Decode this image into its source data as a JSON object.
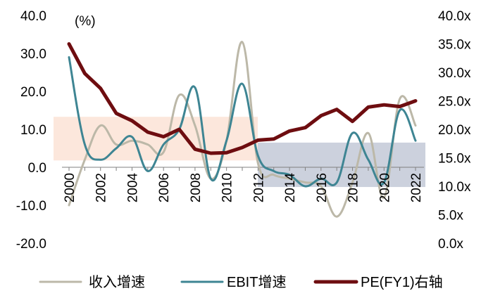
{
  "chart_data": {
    "type": "line",
    "unit_label": "(%)",
    "x": [
      "2000",
      "2001",
      "2002",
      "2003",
      "2004",
      "2005",
      "2006",
      "2007",
      "2008",
      "2009",
      "2010",
      "2011",
      "2012",
      "2013",
      "2014",
      "2015",
      "2016",
      "2017",
      "2018",
      "2019",
      "2020",
      "2021",
      "2022"
    ],
    "x_tick_labels": [
      "2000",
      "2002",
      "2004",
      "2006",
      "2008",
      "2010",
      "2012",
      "2014",
      "2016",
      "2018",
      "2020",
      "2022"
    ],
    "y_left": {
      "min": -20,
      "max": 40,
      "ticks": [
        "-20.0",
        "-10.0",
        "0.0",
        "10.0",
        "20.0",
        "30.0",
        "40.0"
      ]
    },
    "y_right": {
      "min": 0,
      "max": 40,
      "ticks": [
        "0.0x",
        "5.0x",
        "10.0x",
        "15.0x",
        "20.0x",
        "25.0x",
        "30.0x",
        "35.0x",
        "40.0x"
      ]
    },
    "series": [
      {
        "name": "收入增速",
        "axis": "left",
        "color": "#bcb8a8",
        "values": [
          -10,
          2,
          11,
          6,
          7,
          6,
          4,
          19,
          11,
          -3,
          7,
          33,
          1,
          -2,
          -3,
          -4,
          -5,
          -13,
          -4,
          9,
          -8,
          18,
          11
        ]
      },
      {
        "name": "EBIT增速",
        "axis": "left",
        "color": "#3e8593",
        "values": [
          29,
          6,
          2,
          5,
          8,
          -1,
          6,
          10,
          21,
          -3,
          7,
          22,
          3,
          -1,
          -2,
          -5,
          -3,
          -4,
          9,
          2,
          -4,
          15,
          7
        ]
      },
      {
        "name": "PE(FY1)右轴",
        "axis": "right",
        "color": "#6e0d10",
        "values": [
          35,
          29.8,
          27.2,
          22.8,
          21.5,
          19.5,
          18.7,
          20,
          16.5,
          15.8,
          15.9,
          16.8,
          18.1,
          18.3,
          19.7,
          20.3,
          22.4,
          23.5,
          21.4,
          23.9,
          24.3,
          24,
          25
        ]
      }
    ],
    "legend_position": "bottom",
    "grid": false,
    "colors": {
      "highlight_orange": "#fbe3d6",
      "highlight_blue": "#c3c9d7",
      "axis": "#808080"
    }
  }
}
